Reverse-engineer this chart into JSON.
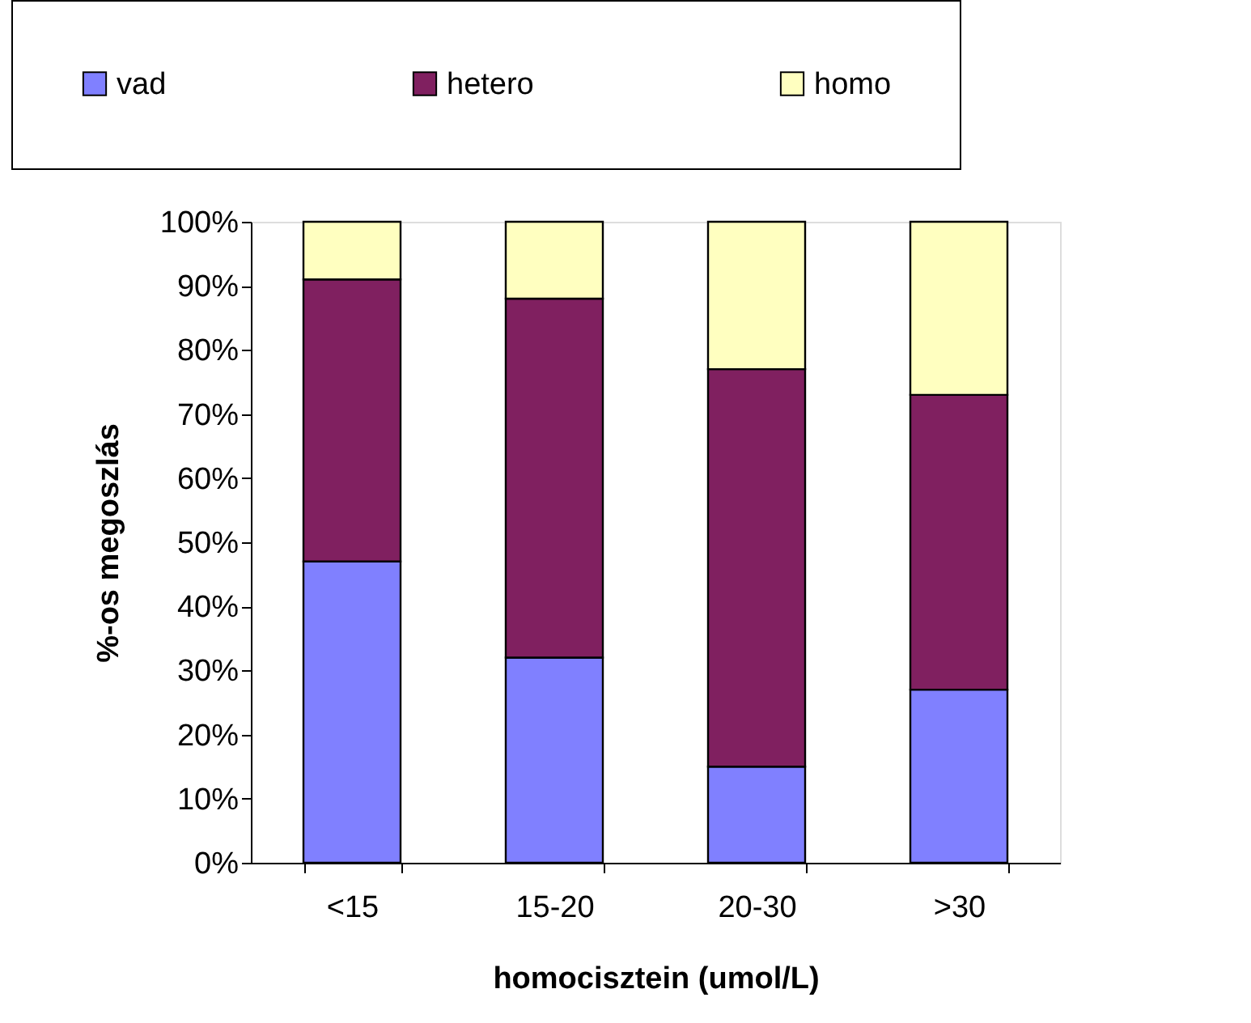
{
  "chart_data": {
    "type": "bar",
    "stacked": true,
    "xlabel": "homocisztein (umol/L)",
    "ylabel": "%-os megoszlás",
    "categories": [
      "<15",
      "15-20",
      "20-30",
      ">30"
    ],
    "series": [
      {
        "name": "vad",
        "color": "#8080ff",
        "values": [
          47,
          32,
          15,
          27
        ]
      },
      {
        "name": "hetero",
        "color": "#802060",
        "values": [
          44,
          56,
          62,
          46
        ]
      },
      {
        "name": "homo",
        "color": "#ffffc0",
        "values": [
          9,
          12,
          23,
          27
        ]
      }
    ],
    "ylim": [
      0,
      100
    ],
    "yticks": [
      {
        "value": 0,
        "label": "0%"
      },
      {
        "value": 10,
        "label": "10%"
      },
      {
        "value": 20,
        "label": "20%"
      },
      {
        "value": 30,
        "label": "30%"
      },
      {
        "value": 40,
        "label": "40%"
      },
      {
        "value": 50,
        "label": "50%"
      },
      {
        "value": 60,
        "label": "60%"
      },
      {
        "value": 70,
        "label": "70%"
      },
      {
        "value": 80,
        "label": "80%"
      },
      {
        "value": 90,
        "label": "90%"
      },
      {
        "value": 100,
        "label": "100%"
      }
    ],
    "legend": "top",
    "grid": false
  }
}
